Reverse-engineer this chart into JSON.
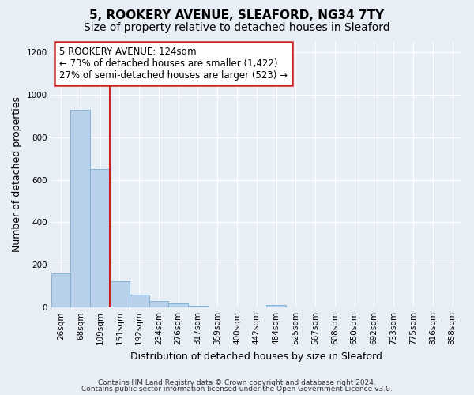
{
  "title_line1": "5, ROOKERY AVENUE, SLEAFORD, NG34 7TY",
  "title_line2": "Size of property relative to detached houses in Sleaford",
  "xlabel": "Distribution of detached houses by size in Sleaford",
  "ylabel": "Number of detached properties",
  "bar_color": "#b8d0ea",
  "bar_edgecolor": "#7aafd4",
  "background_color": "#e8eef6",
  "plot_bg_color": "#e8eef6",
  "categories": [
    "26sqm",
    "68sqm",
    "109sqm",
    "151sqm",
    "192sqm",
    "234sqm",
    "276sqm",
    "317sqm",
    "359sqm",
    "400sqm",
    "442sqm",
    "484sqm",
    "525sqm",
    "567sqm",
    "608sqm",
    "650sqm",
    "692sqm",
    "733sqm",
    "775sqm",
    "816sqm",
    "858sqm"
  ],
  "values": [
    160,
    930,
    650,
    125,
    60,
    30,
    18,
    8,
    0,
    0,
    0,
    12,
    0,
    0,
    0,
    0,
    0,
    0,
    0,
    0,
    0
  ],
  "ylim": [
    0,
    1250
  ],
  "yticks": [
    0,
    200,
    400,
    600,
    800,
    1000,
    1200
  ],
  "red_line_bin_index": 2,
  "annotation_title": "5 ROOKERY AVENUE: 124sqm",
  "annotation_line1": "← 73% of detached houses are smaller (1,422)",
  "annotation_line2": "27% of semi-detached houses are larger (523) →",
  "annotation_box_color": "#ffffff",
  "annotation_box_edgecolor": "#cc2222",
  "footer_line1": "Contains HM Land Registry data © Crown copyright and database right 2024.",
  "footer_line2": "Contains public sector information licensed under the Open Government Licence v3.0.",
  "grid_color": "#ffffff",
  "title_fontsize": 11,
  "subtitle_fontsize": 10,
  "tick_fontsize": 7.5,
  "ylabel_fontsize": 9,
  "xlabel_fontsize": 9,
  "annotation_fontsize": 8.5
}
